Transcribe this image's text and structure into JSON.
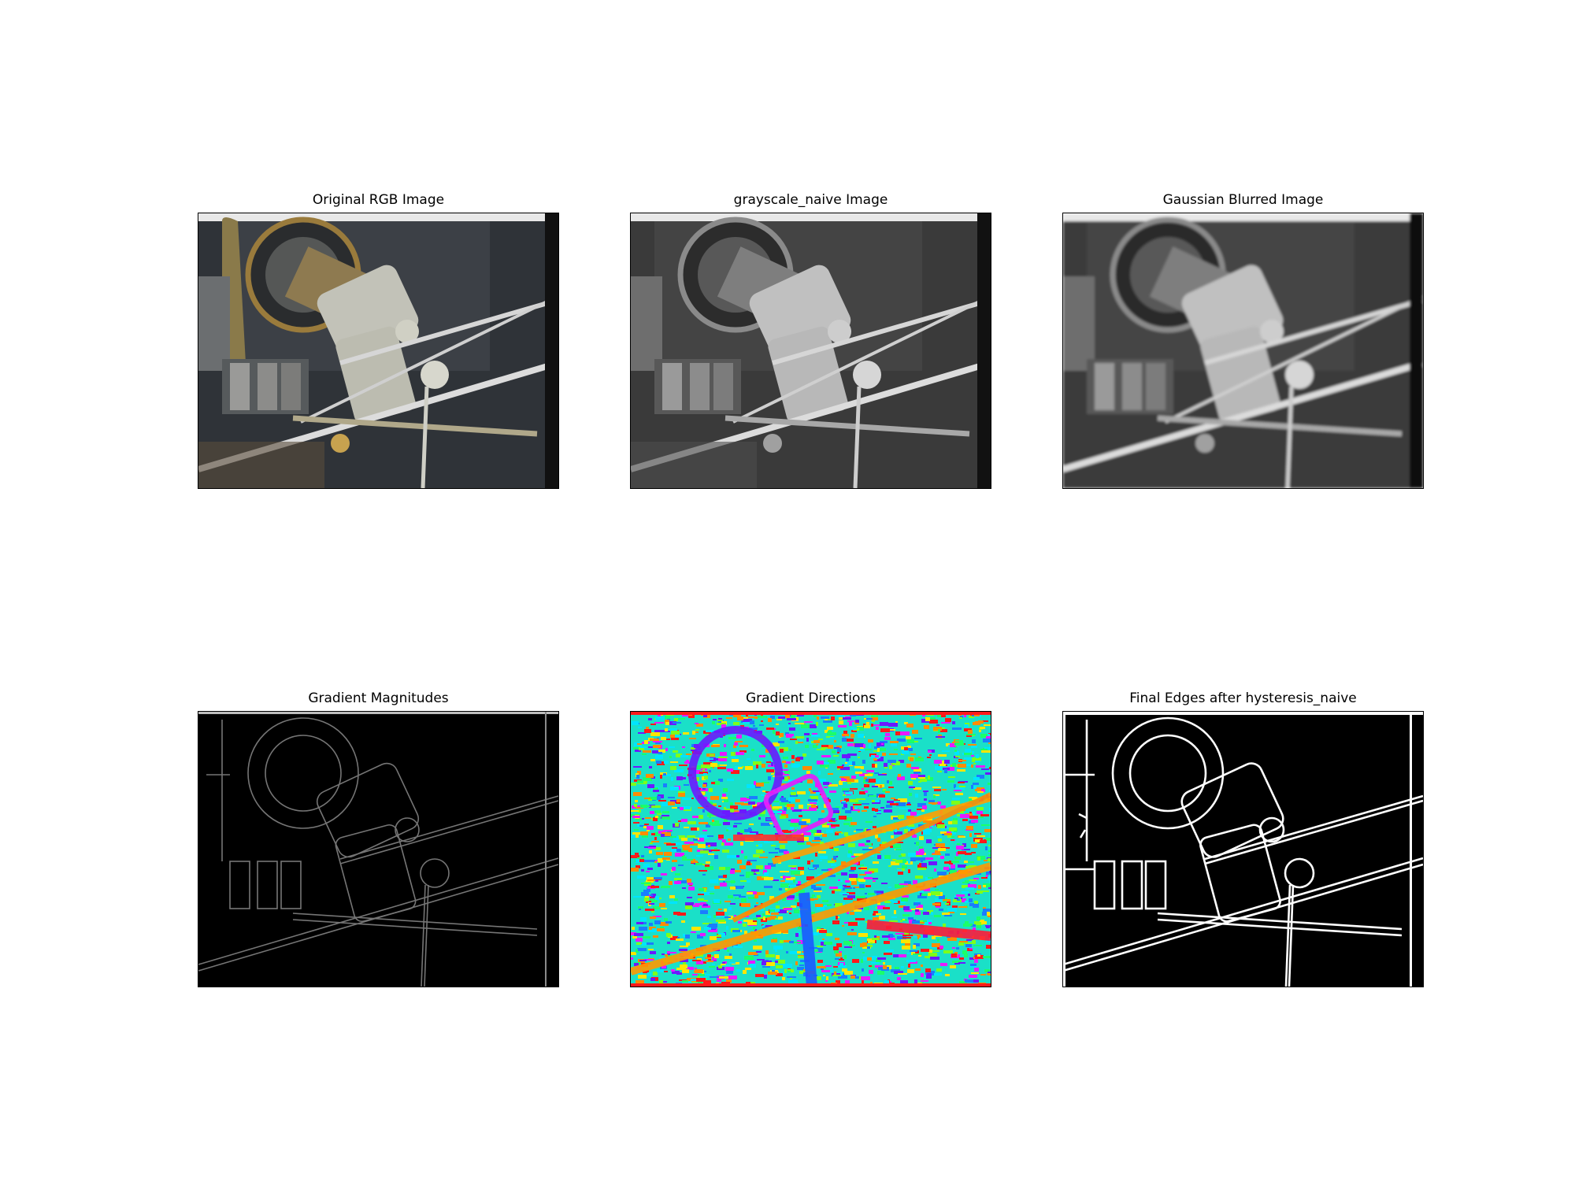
{
  "figure": {
    "panels": [
      {
        "id": "original",
        "title": "Original RGB Image",
        "kind": "color-photo",
        "icon": "photo-rgb"
      },
      {
        "id": "gray",
        "title": "grayscale_naive Image",
        "kind": "grayscale-photo",
        "icon": "photo-grayscale"
      },
      {
        "id": "blur",
        "title": "Gaussian Blurred Image",
        "kind": "blurred-grayscale-photo",
        "icon": "photo-blurred"
      },
      {
        "id": "magnitude",
        "title": "Gradient Magnitudes",
        "kind": "gradient-magnitude-map",
        "icon": "gradient-magnitude"
      },
      {
        "id": "direction",
        "title": "Gradient Directions",
        "kind": "gradient-direction-map",
        "icon": "gradient-direction"
      },
      {
        "id": "edges",
        "title": "Final Edges after hysteresis_naive",
        "kind": "binary-edge-map",
        "icon": "edge-map"
      }
    ]
  },
  "colors": {
    "background": "#ffffff",
    "axis_frame": "#000000",
    "metal": "#b9b9b0",
    "brass": "#b8944e",
    "dark_panel": "#3c4046",
    "hsv_palette": [
      "#ff1a1a",
      "#ff8c00",
      "#ffe600",
      "#7dff1a",
      "#1aff6a",
      "#00e5ff",
      "#1a7dff",
      "#6a1aff",
      "#e61aff"
    ]
  }
}
